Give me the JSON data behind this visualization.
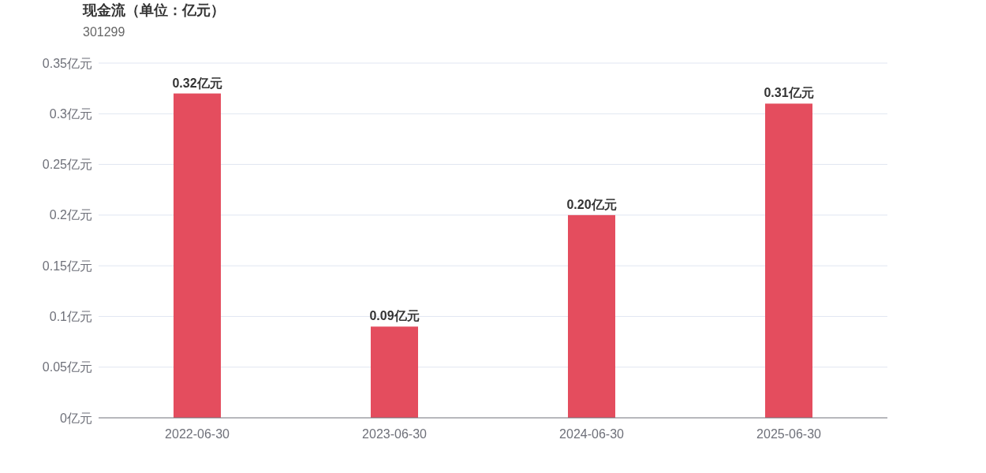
{
  "chart_data": {
    "type": "bar",
    "title": "现金流（单位：亿元）",
    "subtitle": "301299",
    "categories": [
      "2022-06-30",
      "2023-06-30",
      "2024-06-30",
      "2025-06-30"
    ],
    "values": [
      0.32,
      0.09,
      0.2,
      0.31
    ],
    "value_labels": [
      "0.32亿元",
      "0.09亿元",
      "0.20亿元",
      "0.31亿元"
    ],
    "color": "#e44d5e",
    "ylim": [
      0,
      0.35
    ],
    "yticks": [
      {
        "value": 0,
        "label": "0亿元"
      },
      {
        "value": 0.05,
        "label": "0.05亿元"
      },
      {
        "value": 0.1,
        "label": "0.1亿元"
      },
      {
        "value": 0.15,
        "label": "0.15亿元"
      },
      {
        "value": 0.2,
        "label": "0.2亿元"
      },
      {
        "value": 0.25,
        "label": "0.25亿元"
      },
      {
        "value": 0.3,
        "label": "0.3亿元"
      },
      {
        "value": 0.35,
        "label": "0.35亿元"
      }
    ],
    "grid": "y"
  }
}
